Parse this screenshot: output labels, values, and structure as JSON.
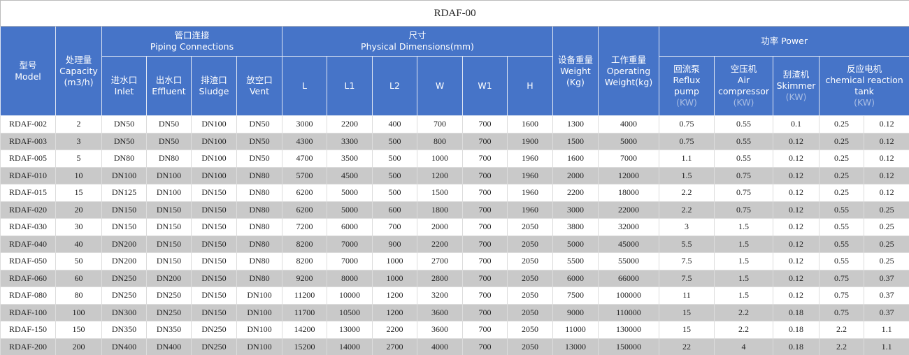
{
  "title": "RDAF-00",
  "header": {
    "groups": [
      {
        "lines": [
          "型号",
          "Model"
        ]
      },
      {
        "lines": [
          "处理量",
          "Capacity",
          "(m3/h)"
        ]
      },
      {
        "lines": [
          "管口连接",
          "Piping Connections"
        ]
      },
      {
        "lines": [
          "尺寸",
          "Physical Dimensions(mm)"
        ]
      },
      {
        "lines": [
          "设备重量",
          "Weight",
          "(Kg)"
        ]
      },
      {
        "lines": [
          "工作重量",
          "Operating",
          "Weight(kg)"
        ]
      },
      {
        "lines": [
          "功率  Power"
        ]
      }
    ],
    "sub": [
      {
        "lines": [
          "进水口",
          "Inlet"
        ]
      },
      {
        "lines": [
          "出水口",
          "Effluent"
        ]
      },
      {
        "lines": [
          "排渣口",
          "Sludge"
        ]
      },
      {
        "lines": [
          "放空口",
          "Vent"
        ]
      },
      {
        "lines": [
          "L"
        ]
      },
      {
        "lines": [
          "L1"
        ]
      },
      {
        "lines": [
          "L2"
        ]
      },
      {
        "lines": [
          "W"
        ]
      },
      {
        "lines": [
          "W1"
        ]
      },
      {
        "lines": [
          "H"
        ]
      },
      {
        "lines": [
          "回流泵",
          "Reflux",
          "pump",
          "(KW)"
        ]
      },
      {
        "lines": [
          "空压机",
          "Air",
          "compressor",
          "(KW)"
        ]
      },
      {
        "lines": [
          "刮渣机",
          "Skimmer",
          "(KW)"
        ]
      },
      {
        "lines": [
          "反应电机",
          "chemical reaction",
          "tank",
          "(KW)"
        ]
      }
    ]
  },
  "table": {
    "rows": [
      [
        "RDAF-002",
        "2",
        "DN50",
        "DN50",
        "DN100",
        "DN50",
        "3000",
        "2200",
        "400",
        "700",
        "700",
        "1600",
        "1300",
        "4000",
        "0.75",
        "0.55",
        "0.1",
        "0.25",
        "0.12"
      ],
      [
        "RDAF-003",
        "3",
        "DN50",
        "DN50",
        "DN100",
        "DN50",
        "4300",
        "3300",
        "500",
        "800",
        "700",
        "1900",
        "1500",
        "5000",
        "0.75",
        "0.55",
        "0.12",
        "0.25",
        "0.12"
      ],
      [
        "RDAF-005",
        "5",
        "DN80",
        "DN80",
        "DN100",
        "DN50",
        "4700",
        "3500",
        "500",
        "1000",
        "700",
        "1960",
        "1600",
        "7000",
        "1.1",
        "0.55",
        "0.12",
        "0.25",
        "0.12"
      ],
      [
        "RDAF-010",
        "10",
        "DN100",
        "DN100",
        "DN100",
        "DN80",
        "5700",
        "4500",
        "500",
        "1200",
        "700",
        "1960",
        "2000",
        "12000",
        "1.5",
        "0.75",
        "0.12",
        "0.25",
        "0.12"
      ],
      [
        "RDAF-015",
        "15",
        "DN125",
        "DN100",
        "DN150",
        "DN80",
        "6200",
        "5000",
        "500",
        "1500",
        "700",
        "1960",
        "2200",
        "18000",
        "2.2",
        "0.75",
        "0.12",
        "0.25",
        "0.12"
      ],
      [
        "RDAF-020",
        "20",
        "DN150",
        "DN150",
        "DN150",
        "DN80",
        "6200",
        "5000",
        "600",
        "1800",
        "700",
        "1960",
        "3000",
        "22000",
        "2.2",
        "0.75",
        "0.12",
        "0.55",
        "0.25"
      ],
      [
        "RDAF-030",
        "30",
        "DN150",
        "DN150",
        "DN150",
        "DN80",
        "7200",
        "6000",
        "700",
        "2000",
        "700",
        "2050",
        "3800",
        "32000",
        "3",
        "1.5",
        "0.12",
        "0.55",
        "0.25"
      ],
      [
        "RDAF-040",
        "40",
        "DN200",
        "DN150",
        "DN150",
        "DN80",
        "8200",
        "7000",
        "900",
        "2200",
        "700",
        "2050",
        "5000",
        "45000",
        "5.5",
        "1.5",
        "0.12",
        "0.55",
        "0.25"
      ],
      [
        "RDAF-050",
        "50",
        "DN200",
        "DN150",
        "DN150",
        "DN80",
        "8200",
        "7000",
        "1000",
        "2700",
        "700",
        "2050",
        "5500",
        "55000",
        "7.5",
        "1.5",
        "0.12",
        "0.55",
        "0.25"
      ],
      [
        "RDAF-060",
        "60",
        "DN250",
        "DN200",
        "DN150",
        "DN80",
        "9200",
        "8000",
        "1000",
        "2800",
        "700",
        "2050",
        "6000",
        "66000",
        "7.5",
        "1.5",
        "0.12",
        "0.75",
        "0.37"
      ],
      [
        "RDAF-080",
        "80",
        "DN250",
        "DN250",
        "DN150",
        "DN100",
        "11200",
        "10000",
        "1200",
        "3200",
        "700",
        "2050",
        "7500",
        "100000",
        "11",
        "1.5",
        "0.12",
        "0.75",
        "0.37"
      ],
      [
        "RDAF-100",
        "100",
        "DN300",
        "DN250",
        "DN150",
        "DN100",
        "11700",
        "10500",
        "1200",
        "3600",
        "700",
        "2050",
        "9000",
        "110000",
        "15",
        "2.2",
        "0.18",
        "0.75",
        "0.37"
      ],
      [
        "RDAF-150",
        "150",
        "DN350",
        "DN350",
        "DN250",
        "DN100",
        "14200",
        "13000",
        "2200",
        "3600",
        "700",
        "2050",
        "11000",
        "130000",
        "15",
        "2.2",
        "0.18",
        "2.2",
        "1.1"
      ],
      [
        "RDAF-200",
        "200",
        "DN400",
        "DN400",
        "DN250",
        "DN100",
        "15200",
        "14000",
        "2700",
        "4000",
        "700",
        "2050",
        "13000",
        "150000",
        "22",
        "4",
        "0.18",
        "2.2",
        "1.1"
      ]
    ]
  }
}
